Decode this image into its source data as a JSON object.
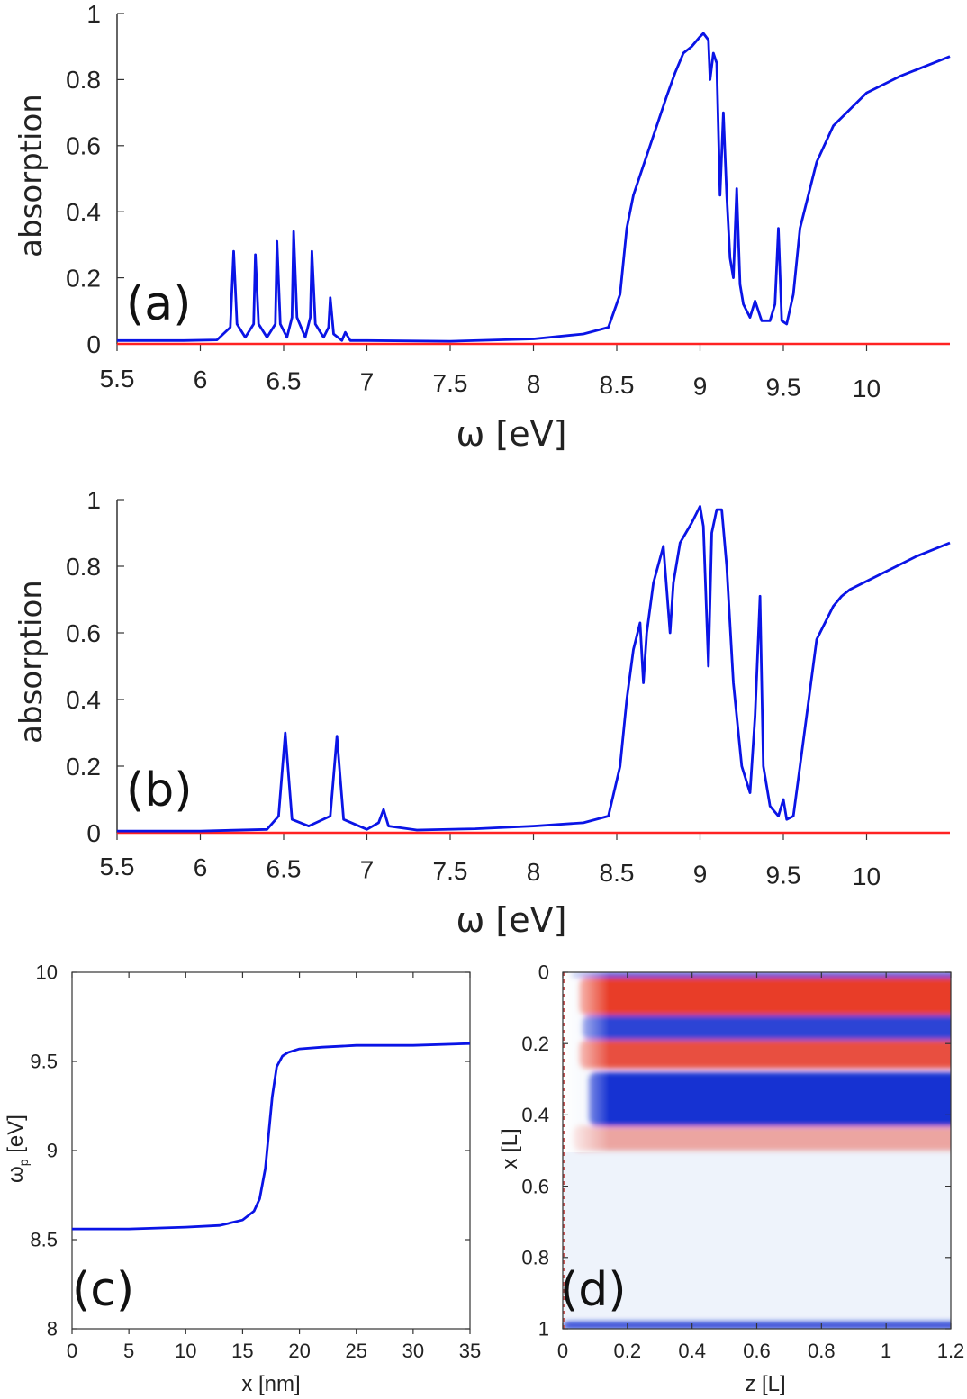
{
  "colors": {
    "curve": "#0a14e6",
    "baseline": "#ff2222",
    "axis": "#333333",
    "red_mode": "#e8321c",
    "blue_mode": "#1432d2",
    "background_light": "#eef3fb"
  },
  "chart_data": [
    {
      "id": "a",
      "type": "line",
      "panel_label": "(a)",
      "xlabel": "ω [eV]",
      "ylabel": "absorption",
      "xlim": [
        5.5,
        10.5
      ],
      "ylim": [
        0,
        1
      ],
      "xticks": [
        "5.5",
        "6",
        "6.5",
        "7",
        "7.5",
        "8",
        "8.5",
        "9",
        "9.5",
        "10"
      ],
      "yticks": [
        "0",
        "0.2",
        "0.4",
        "0.6",
        "0.8",
        "1"
      ],
      "series": [
        {
          "name": "absorption",
          "color": "#0a14e6",
          "x": [
            5.5,
            5.9,
            6.1,
            6.18,
            6.2,
            6.22,
            6.27,
            6.32,
            6.33,
            6.35,
            6.4,
            6.45,
            6.46,
            6.48,
            6.52,
            6.55,
            6.56,
            6.58,
            6.63,
            6.66,
            6.67,
            6.69,
            6.74,
            6.77,
            6.78,
            6.8,
            6.85,
            6.87,
            6.9,
            7.0,
            7.5,
            8.0,
            8.3,
            8.45,
            8.52,
            8.56,
            8.6,
            8.7,
            8.8,
            8.85,
            8.9,
            8.95,
            9.0,
            9.02,
            9.05,
            9.06,
            9.08,
            9.1,
            9.12,
            9.14,
            9.16,
            9.18,
            9.2,
            9.22,
            9.24,
            9.26,
            9.3,
            9.33,
            9.37,
            9.42,
            9.45,
            9.47,
            9.49,
            9.52,
            9.56,
            9.6,
            9.7,
            9.8,
            10.0,
            10.2,
            10.4,
            10.5
          ],
          "y": [
            0.01,
            0.01,
            0.012,
            0.05,
            0.28,
            0.06,
            0.02,
            0.06,
            0.27,
            0.06,
            0.02,
            0.06,
            0.31,
            0.06,
            0.02,
            0.08,
            0.34,
            0.08,
            0.02,
            0.08,
            0.28,
            0.06,
            0.02,
            0.05,
            0.14,
            0.03,
            0.01,
            0.035,
            0.01,
            0.01,
            0.008,
            0.015,
            0.03,
            0.05,
            0.15,
            0.35,
            0.45,
            0.6,
            0.75,
            0.82,
            0.88,
            0.9,
            0.93,
            0.94,
            0.92,
            0.8,
            0.88,
            0.85,
            0.45,
            0.7,
            0.45,
            0.26,
            0.2,
            0.47,
            0.18,
            0.12,
            0.08,
            0.13,
            0.07,
            0.07,
            0.12,
            0.35,
            0.07,
            0.06,
            0.15,
            0.35,
            0.55,
            0.66,
            0.76,
            0.81,
            0.85,
            0.87
          ]
        },
        {
          "name": "baseline",
          "color": "#ff2222",
          "x": [
            5.5,
            10.5
          ],
          "y": [
            0,
            0
          ]
        }
      ]
    },
    {
      "id": "b",
      "type": "line",
      "panel_label": "(b)",
      "xlabel": "ω [eV]",
      "ylabel": "absorption",
      "xlim": [
        5.5,
        10.5
      ],
      "ylim": [
        0,
        1
      ],
      "xticks": [
        "5.5",
        "6",
        "6.5",
        "7",
        "7.5",
        "8",
        "8.5",
        "9",
        "9.5",
        "10"
      ],
      "yticks": [
        "0",
        "0.2",
        "0.4",
        "0.6",
        "0.8",
        "1"
      ],
      "series": [
        {
          "name": "absorption",
          "color": "#0a14e6",
          "x": [
            5.5,
            6.0,
            6.4,
            6.47,
            6.51,
            6.55,
            6.65,
            6.78,
            6.82,
            6.86,
            7.0,
            7.07,
            7.1,
            7.13,
            7.3,
            7.65,
            8.0,
            8.3,
            8.45,
            8.52,
            8.56,
            8.6,
            8.64,
            8.66,
            8.68,
            8.72,
            8.78,
            8.82,
            8.84,
            8.88,
            8.95,
            9.0,
            9.02,
            9.05,
            9.07,
            9.1,
            9.13,
            9.16,
            9.2,
            9.25,
            9.3,
            9.33,
            9.36,
            9.38,
            9.42,
            9.47,
            9.5,
            9.52,
            9.56,
            9.6,
            9.7,
            9.8,
            9.85,
            9.9,
            10.1,
            10.3,
            10.5
          ],
          "y": [
            0.005,
            0.005,
            0.01,
            0.05,
            0.3,
            0.04,
            0.02,
            0.05,
            0.29,
            0.04,
            0.01,
            0.03,
            0.07,
            0.02,
            0.008,
            0.012,
            0.02,
            0.03,
            0.05,
            0.2,
            0.4,
            0.55,
            0.63,
            0.45,
            0.6,
            0.75,
            0.86,
            0.6,
            0.75,
            0.87,
            0.93,
            0.98,
            0.92,
            0.5,
            0.9,
            0.97,
            0.97,
            0.8,
            0.45,
            0.2,
            0.12,
            0.35,
            0.71,
            0.2,
            0.08,
            0.05,
            0.1,
            0.04,
            0.05,
            0.2,
            0.58,
            0.68,
            0.71,
            0.73,
            0.78,
            0.83,
            0.87
          ]
        },
        {
          "name": "baseline",
          "color": "#ff2222",
          "x": [
            5.5,
            10.5
          ],
          "y": [
            0,
            0
          ]
        }
      ]
    },
    {
      "id": "c",
      "type": "line",
      "panel_label": "(c)",
      "xlabel": "x [nm]",
      "ylabel_main": "ω",
      "ylabel_sub": "p",
      "ylabel_unit": " [eV]",
      "xlim": [
        0,
        35
      ],
      "ylim": [
        8,
        10
      ],
      "xticks": [
        "0",
        "5",
        "10",
        "15",
        "20",
        "25",
        "30",
        "35"
      ],
      "yticks": [
        "8",
        "8.5",
        "9",
        "9.5",
        "10"
      ],
      "series": [
        {
          "name": "omega_p",
          "color": "#0a14e6",
          "x": [
            0,
            5,
            10,
            13,
            15,
            16,
            16.5,
            17,
            17.3,
            17.6,
            18,
            18.5,
            19,
            20,
            22,
            25,
            30,
            35
          ],
          "y": [
            8.56,
            8.56,
            8.57,
            8.58,
            8.61,
            8.66,
            8.73,
            8.9,
            9.1,
            9.3,
            9.47,
            9.53,
            9.55,
            9.57,
            9.58,
            9.59,
            9.59,
            9.6
          ]
        }
      ]
    },
    {
      "id": "d",
      "type": "heatmap",
      "panel_label": "(d)",
      "xlabel": "z [L]",
      "ylabel": "x [L]",
      "xlim": [
        0,
        1.2
      ],
      "ylim": [
        0,
        1
      ],
      "xticks": [
        "0",
        "0.2",
        "0.4",
        "0.6",
        "0.8",
        "1",
        "1.2"
      ],
      "yticks": [
        "0",
        "0.2",
        "0.4",
        "0.6",
        "0.8",
        "1"
      ],
      "bands": [
        {
          "x_from": 0.0,
          "x_to": 0.015,
          "sign": "blue",
          "strength": 0.85,
          "z_start": 0.02
        },
        {
          "x_from": 0.015,
          "x_to": 0.12,
          "sign": "red",
          "strength": 0.95,
          "z_start": 0.05
        },
        {
          "x_from": 0.12,
          "x_to": 0.19,
          "sign": "blue",
          "strength": 0.9,
          "z_start": 0.06
        },
        {
          "x_from": 0.19,
          "x_to": 0.27,
          "sign": "red",
          "strength": 0.85,
          "z_start": 0.05
        },
        {
          "x_from": 0.28,
          "x_to": 0.43,
          "sign": "blue",
          "strength": 1.0,
          "z_start": 0.08
        },
        {
          "x_from": 0.43,
          "x_to": 0.5,
          "sign": "red",
          "strength": 0.4,
          "z_start": 0.03
        },
        {
          "x_from": 0.98,
          "x_to": 1.0,
          "sign": "blue",
          "strength": 0.9,
          "z_start": 0.0
        }
      ]
    }
  ]
}
